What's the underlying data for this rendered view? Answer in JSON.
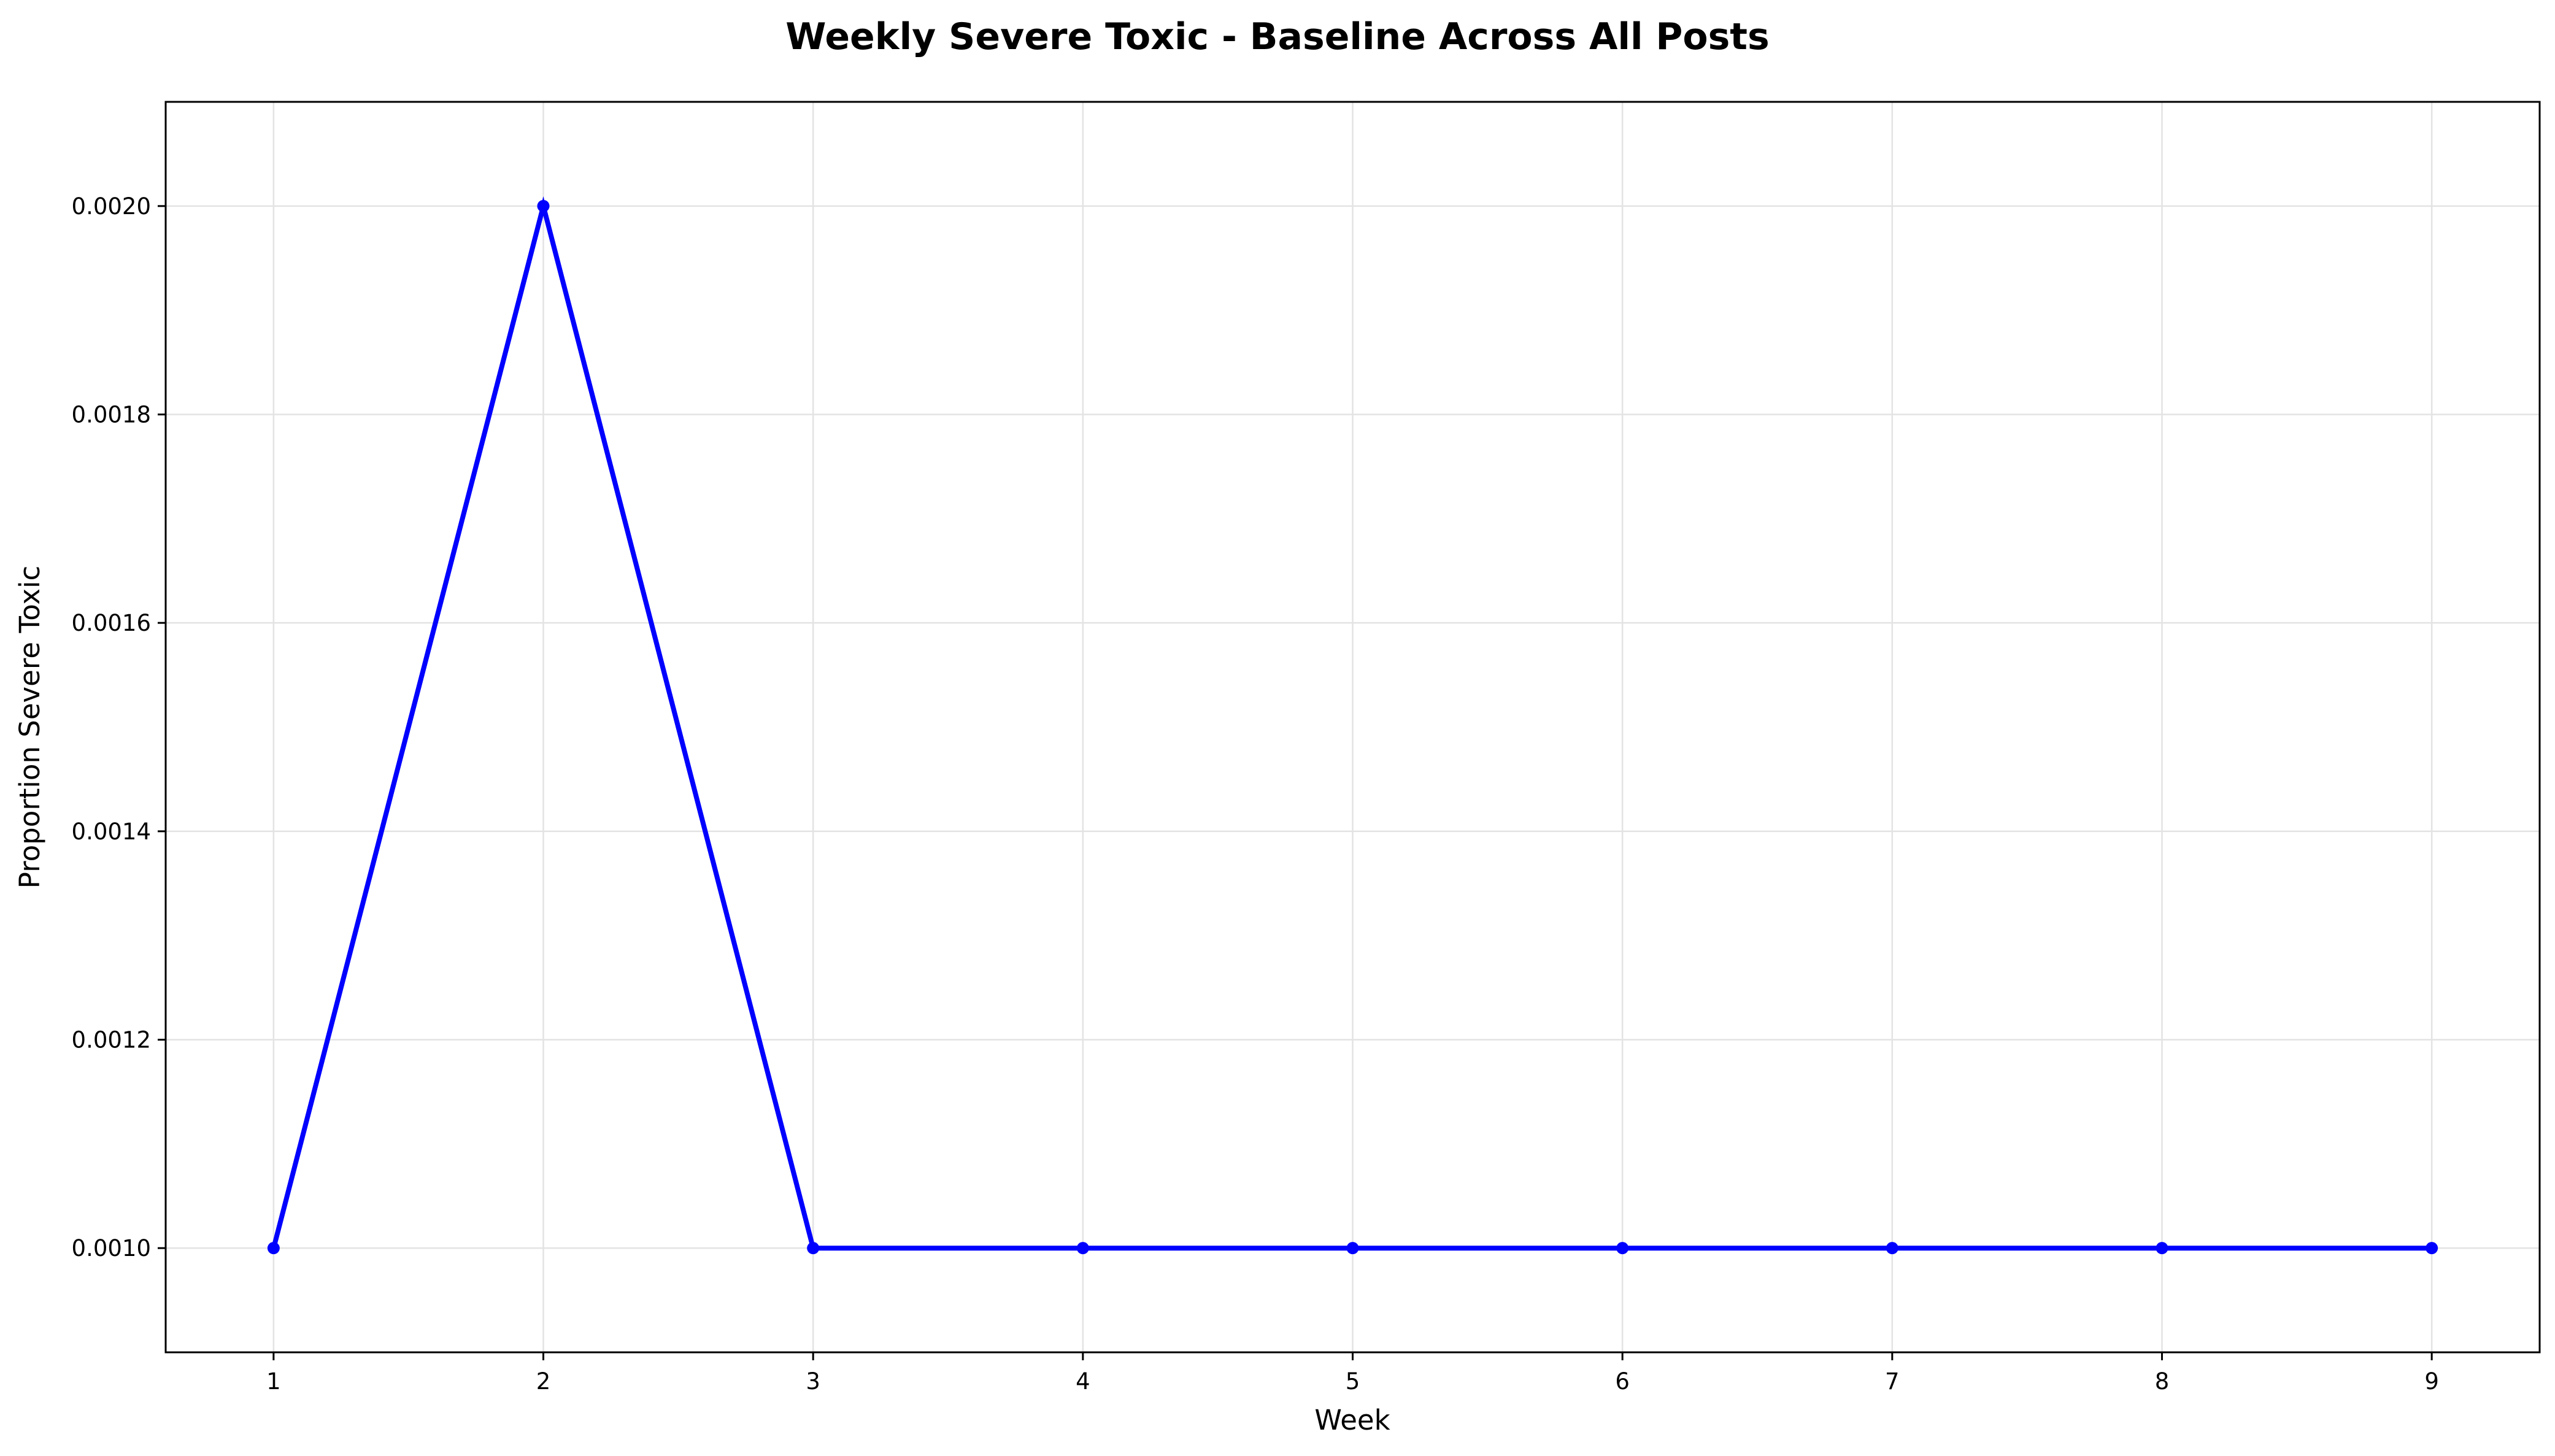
{
  "chart_data": {
    "type": "line",
    "title": "Weekly Severe Toxic - Baseline Across All Posts",
    "xlabel": "Week",
    "ylabel": "Proportion Severe Toxic",
    "x": [
      1,
      2,
      3,
      4,
      5,
      6,
      7,
      8,
      9
    ],
    "x_tick_labels": [
      "1",
      "2",
      "3",
      "4",
      "5",
      "6",
      "7",
      "8",
      "9"
    ],
    "y_tick_values": [
      0.001,
      0.0012,
      0.0014,
      0.0016,
      0.0018,
      0.002
    ],
    "y_tick_labels": [
      "0.0010",
      "0.0012",
      "0.0014",
      "0.0016",
      "0.0018",
      "0.0020"
    ],
    "xlim": [
      0.6,
      9.4
    ],
    "ylim": [
      0.0009,
      0.0021
    ],
    "grid": true,
    "series": [
      {
        "values": [
          0.001,
          0.002,
          0.001,
          0.001,
          0.001,
          0.001,
          0.001,
          0.001,
          0.001
        ],
        "color": "#0000ff",
        "marker": "circle"
      }
    ]
  }
}
